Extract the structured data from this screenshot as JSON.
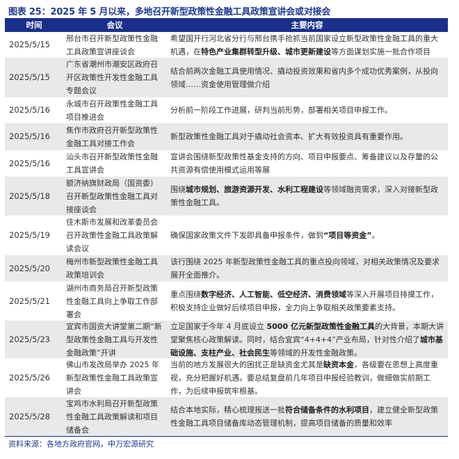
{
  "title": "图表 25：2025 年 5 月以来，多地召开新型政策性金融工具政策宣讲会或对接会",
  "headers": {
    "time": "时间",
    "meeting": "会议",
    "content": "主要内容"
  },
  "colors": {
    "header_bg": "#1a2f8a",
    "title": "#1f3a93",
    "stripe": "#e9e9e9"
  },
  "rows": [
    {
      "date": "2025/5/15",
      "meeting": "邢台市召开新型政策性金融工具政策宣讲座谈会",
      "h": 37,
      "content": [
        {
          "t": "希望国开行河北省分行与邢台携手抢抓当前国家设立新型政策性金融工具的重大机遇，在"
        },
        {
          "t": "特色产业集群转型升级、城市更新建设",
          "b": true
        },
        {
          "t": "等方面谋划实施一批合作项目"
        }
      ]
    },
    {
      "date": "2025/5/15",
      "meeting": "广东省潮州市潮安区政府召开区政策性开发性金融工具专题会议",
      "h": 57,
      "content": [
        {
          "t": "结合前两次金融工具使用情况、撬动投资效果和省内多个成功优秀案例，从投向领域……资金使用管理做介绍"
        }
      ]
    },
    {
      "date": "2025/5/16",
      "meeting": "永城市召开政策性金融工具项目推进会",
      "h": 37,
      "content": [
        {
          "t": "分析前一阶段工作进展，研判当前形势，部署相关项目申报工作。"
        }
      ]
    },
    {
      "date": "2025/5/16",
      "meeting": "焦作市政府召开新型政策性金融工具对接工作会",
      "h": 39,
      "content": [
        {
          "t": "新型政策性金融工具对于撬动社会资本、扩大有效投资具有重要作用。"
        }
      ]
    },
    {
      "date": "2025/5/16",
      "meeting": "汕头市召开新型政策性金融工具宣讲会",
      "h": 38,
      "content": [
        {
          "t": "宣讲会围绕新型政策性基金支持的方向、项目申报要点、筹备建议以及存量的公共资源有偿使用模式运用等展"
        }
      ]
    },
    {
      "date": "2025/5/18",
      "meeting": "额济纳旗财政局（国资委）召开新型政策性金融工具对接座谈会",
      "h": 56,
      "content": [
        {
          "t": "围绕"
        },
        {
          "t": "城市规划、旅游资源开发、水利工程建设",
          "b": true
        },
        {
          "t": "等领域融资需求，深入对接新型政策性金融工具。"
        }
      ]
    },
    {
      "date": "2025/5/19",
      "meeting": "佳木斯市发展和改革委员会召开政策性金融工具政策解读会议",
      "h": 57,
      "content": [
        {
          "t": "确保国家政策文件下发即具备申报条件，做到"
        },
        {
          "t": "“项目等资金”",
          "b": true
        },
        {
          "t": "。"
        }
      ]
    },
    {
      "date": "2025/5/20",
      "meeting": "梅州市新型政策性金融工具政策培训会",
      "h": 38,
      "content": [
        {
          "t": "该行围绕 2025 年新型政策性金融工具的重点投向领域，对相关政策情况及要求展开全面推介。"
        }
      ]
    },
    {
      "date": "2025/5/21",
      "meeting": "湖州市商务局召开新型政策性金融工具向上争取工作部署会",
      "h": 56,
      "content": [
        {
          "t": "重点围绕"
        },
        {
          "t": "数字经济、人工智能、低空经济、消费领域",
          "b": true
        },
        {
          "t": "等深入开展项目排摸工作，积极支持企业做好后续项目申报，全力向上争取相关政策要素支持。"
        }
      ]
    },
    {
      "date": "2025/5/23",
      "meeting": "宜宾市国资大讲堂第二期“新型政策性金融工具与开发性金融政策”开讲",
      "h": 54,
      "content": [
        {
          "t": "立足国家于今年 4 月底设立 "
        },
        {
          "t": "5000 亿元新型政策性金融工具",
          "b": true
        },
        {
          "t": "的大背景，本期大讲堂聚焦核心政策解读。同时，结合宜宾“4+4+4”产业布局，针对性介绍了"
        },
        {
          "t": "城市基础设施、支柱产业、社会民生",
          "b": true
        },
        {
          "t": "等领域的开发性金融政策。"
        }
      ]
    },
    {
      "date": "2025/5/26",
      "meeting": "佛山市发改局举办 2025 年新型政策性金融工具政策宣讲会",
      "h": 56,
      "content": [
        {
          "t": "当前的地方发展很大的困扰正是缺资金尤其是"
        },
        {
          "t": "缺资本金",
          "b": true
        },
        {
          "t": "，各级要在思想上高度重视，充分把握好机遇，要总结复盘前几年项目申报经验教训，做细做实前期工作，为后续申报筑牢根基。"
        }
      ]
    },
    {
      "date": "2025/5/28",
      "meeting": "宝鸡市水利局召开新型政策性金融工具政策解读和项目储备会",
      "h": 56,
      "content": [
        {
          "t": "结合本地实际，精心梳理报送一批"
        },
        {
          "t": "符合储备条件的水利项目",
          "b": true
        },
        {
          "t": "，建立健全新型政策性金融工具项目储备库动态管理机制，提高项目储备的质量和效率"
        }
      ]
    }
  ],
  "source": "资料来源：各地方政府官网，申万宏源研究"
}
